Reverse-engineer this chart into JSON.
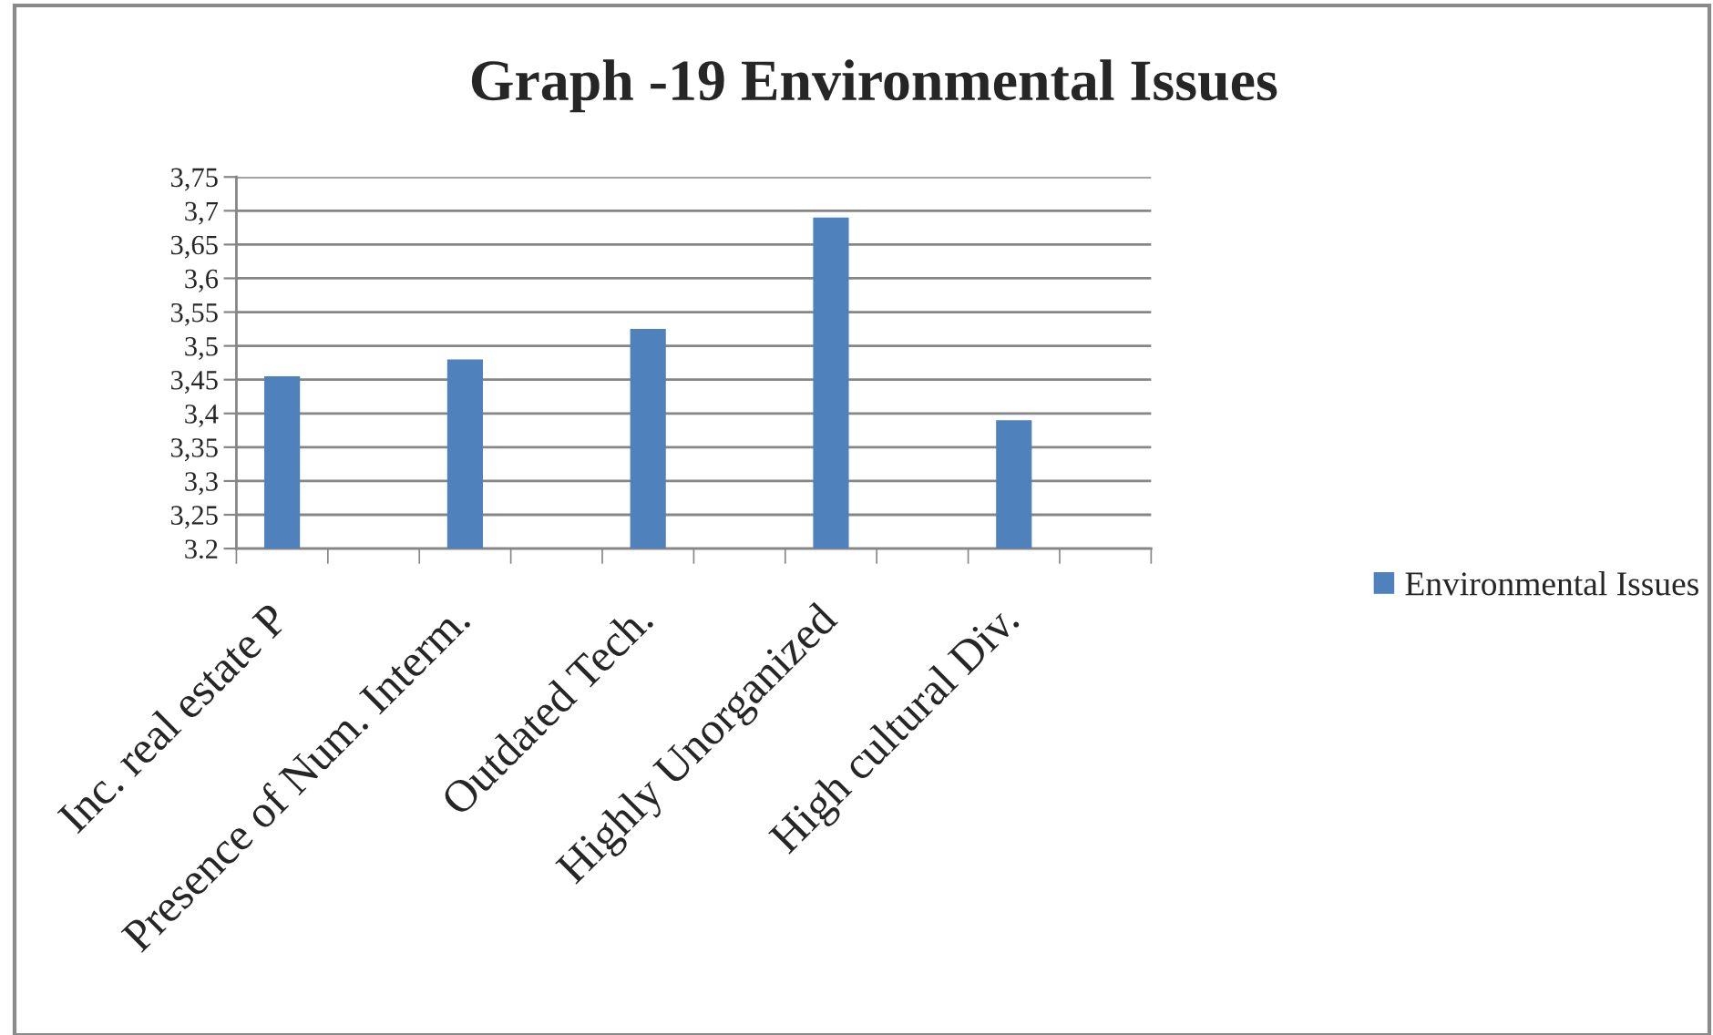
{
  "chart_data": {
    "type": "bar",
    "title": "Graph -19 Environmental Issues",
    "categories": [
      "Inc. real estate P",
      null,
      "Presence of Num. Interm.",
      null,
      "Outdated Tech.",
      null,
      "Highly Unorganized",
      null,
      "High cultural Div.",
      null
    ],
    "series": [
      {
        "name": "Environmental Issues",
        "color": "#4f81bd",
        "values": [
          3.455,
          null,
          3.48,
          null,
          3.525,
          null,
          3.69,
          null,
          3.39,
          null
        ]
      }
    ],
    "ylim": [
      3.2,
      3.75
    ],
    "yticks": [
      3.2,
      {
        "value": 3.25,
        "label": "3,25"
      },
      {
        "value": 3.3,
        "label": "3,3"
      },
      {
        "value": 3.35,
        "label": "3,35"
      },
      {
        "value": 3.4,
        "label": "3,4"
      },
      {
        "value": 3.45,
        "label": "3,45"
      },
      {
        "value": 3.5,
        "label": "3,5"
      },
      {
        "value": 3.55,
        "label": "3,55"
      },
      {
        "value": 3.6,
        "label": "3,6"
      },
      {
        "value": 3.65,
        "label": "3,65"
      },
      {
        "value": 3.7,
        "label": "3,7"
      },
      {
        "value": 3.75,
        "label": "3,75"
      }
    ],
    "grid": "y",
    "legend": "right"
  }
}
